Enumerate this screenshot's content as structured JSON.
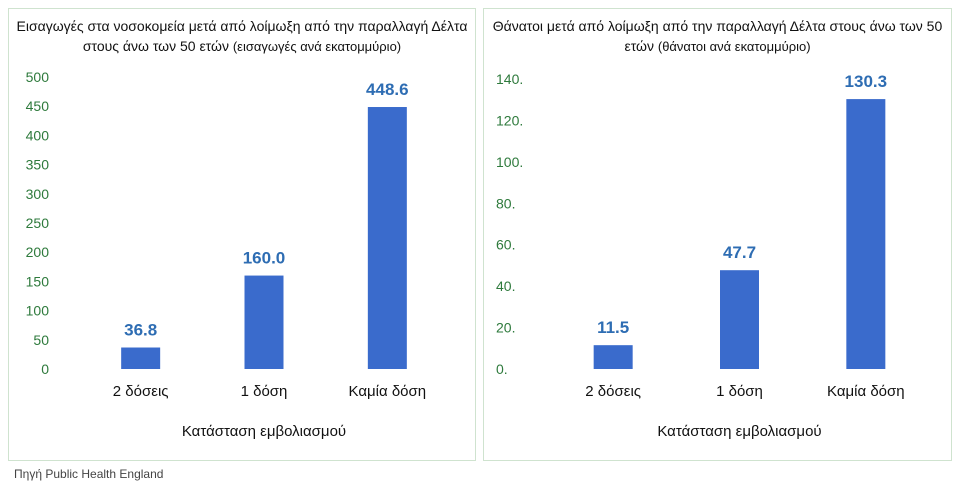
{
  "colors": {
    "bar": "#3a6bcc",
    "value_label": "#2e6db3",
    "tick_label": "#2e7a3c",
    "text": "#111111"
  },
  "chart_data": [
    {
      "type": "bar",
      "title": "Εισαγωγές στα νοσοκομεία μετά από λοίμωξη από την παραλλαγή Δέλτα στους άνω των 50 ετών",
      "subtitle": "(εισαγωγές ανά εκατομμύριο)",
      "xlabel": "Κατάσταση εμβολιασμού",
      "ylabel": "",
      "categories": [
        "2 δόσεις",
        "1 δόση",
        "Καμία δόση"
      ],
      "values": [
        36.8,
        160.0,
        448.6
      ],
      "value_labels": [
        "36.8",
        "160.0",
        "448.6"
      ],
      "ylim": [
        0,
        500
      ],
      "yticks": [
        "0",
        "50",
        "100",
        "150",
        "200",
        "250",
        "300",
        "350",
        "400",
        "450",
        "500"
      ],
      "grid": false
    },
    {
      "type": "bar",
      "title": "Θάνατοι μετά από λοίμωξη από την παραλλαγή Δέλτα στους άνω των 50 ετών",
      "subtitle": "(θάνατοι ανά εκατομμύριο)",
      "xlabel": "Κατάσταση εμβολιασμού",
      "ylabel": "",
      "categories": [
        "2 δόσεις",
        "1 δόση",
        "Καμία δόση"
      ],
      "values": [
        11.5,
        47.7,
        130.3
      ],
      "value_labels": [
        "11.5",
        "47.7",
        "130.3"
      ],
      "ylim": [
        0,
        140
      ],
      "yticks": [
        "0.",
        "20.",
        "40.",
        "60.",
        "80.",
        "100.",
        "120.",
        "140."
      ],
      "grid": false
    }
  ],
  "source": "Πηγή Public Health England"
}
